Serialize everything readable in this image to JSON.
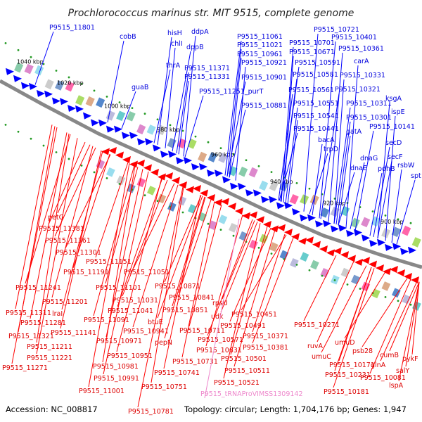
{
  "title": "Prochlorococcus marinus str. MIT 9515, complete genome",
  "footer": {
    "accession": "Accession: NC_008817",
    "summary": "Topology: circular; Length: 1,704,176 bp; Genes: 1,947"
  },
  "colors": {
    "plus_strand": "#0000ff",
    "minus_strand": "#ff0000",
    "trna": "#ee88cc",
    "backbone": "#888888"
  },
  "kbp_markers": [
    "1040 kbp",
    "1020 kbp",
    "1000 kbp",
    "980 kbp",
    "960 kbp",
    "940 kbp",
    "920 kbp",
    "900 kbp"
  ],
  "plus_labels": [
    "P9515_11801",
    "cobB",
    "hisH",
    "ddpA",
    "chlI",
    "dppB",
    "thrA",
    "guaB",
    "P9515_11371",
    "P9515_11331",
    "P9515_11251_purT",
    "P9515_11061",
    "P9515_11021",
    "P9515_10961",
    "P9515_10921",
    "P9515_10901",
    "P9515_10881",
    "P9515_10721",
    "P9515_10701",
    "P9515_10671",
    "P9515_10591",
    "P9515_10581",
    "P9515_10561",
    "P9515_10551",
    "P9515_10541",
    "P9515_10441",
    "P9515_10401",
    "P9515_10361",
    "carA",
    "P9515_10331",
    "P9515_10321",
    "P9515_10311",
    "P9515_10301",
    "gatA",
    "bacA",
    "trpD",
    "dnaE",
    "dnaG",
    "ksgA",
    "ispE",
    "P9515_10141",
    "secD",
    "secF",
    "pdhB",
    "rsbW",
    "spt"
  ],
  "minus_labels": [
    "petG",
    "P9515_11381",
    "P9515_11361",
    "P9515_11301",
    "P9515_11151",
    "P9515_11191",
    "P9515_11051",
    "P9515_11241",
    "P9515_11101",
    "P9515_10871",
    "P9515_11201",
    "P9515_11031",
    "P9515_10841",
    "P9515_11311",
    "lraI",
    "P9515_11041",
    "P9515_10851",
    "P9515_11281",
    "P9515_11091",
    "btuE",
    "rpsU",
    "P9515_11321",
    "P9515_11141",
    "P9515_10941",
    "P9515_10711",
    "udk",
    "P9515_10491",
    "P9515_10451",
    "P9515_11211",
    "P9515_10971",
    "pepN",
    "P9515_10571",
    "P9515_10371",
    "P9515_10631",
    "P9515_11221",
    "P9515_10951",
    "P9515_10731",
    "P9515_10501",
    "P9515_10381",
    "P9515_11271",
    "P9515_10981",
    "P9515_10741",
    "P9515_10511",
    "P9515_10991",
    "P9515_10751",
    "P9515_10521",
    "P9515_11001",
    "P9515_10781",
    "P9515_10271",
    "ruvA",
    "umuD",
    "umuC",
    "P9515_10171",
    "P9515_10231",
    "P9515_10181",
    "psb28",
    "cumB",
    "glnA",
    "P9515_10081",
    "pykF",
    "salY",
    "lspA"
  ],
  "trna_labels": [
    "P9515_tRNAProVIMSS1309142"
  ]
}
